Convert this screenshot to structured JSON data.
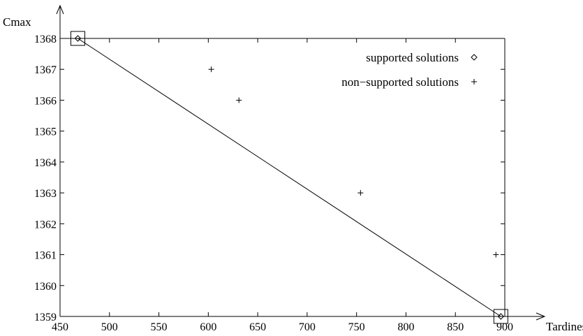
{
  "chart_data": {
    "type": "scatter",
    "xlabel": "Tardiness",
    "ylabel": "Cmax",
    "xlim": [
      450,
      900
    ],
    "ylim": [
      1359,
      1368
    ],
    "xticks": [
      450,
      500,
      550,
      600,
      650,
      700,
      750,
      800,
      850,
      900
    ],
    "yticks": [
      1359,
      1360,
      1361,
      1362,
      1363,
      1364,
      1365,
      1366,
      1367,
      1368
    ],
    "grid": false,
    "legend_position": "top-right",
    "series": [
      {
        "name": "supported solutions",
        "marker": "diamond",
        "points": [
          {
            "x": 468,
            "y": 1368
          },
          {
            "x": 896,
            "y": 1359
          }
        ]
      },
      {
        "name": "non−supported solutions",
        "marker": "plus",
        "points": [
          {
            "x": 603,
            "y": 1367
          },
          {
            "x": 631,
            "y": 1366
          },
          {
            "x": 754,
            "y": 1363
          },
          {
            "x": 891,
            "y": 1361
          }
        ]
      }
    ],
    "segments": [
      {
        "from": {
          "x": 468,
          "y": 1368
        },
        "to": {
          "x": 896,
          "y": 1359
        }
      }
    ],
    "highlighted_points": [
      {
        "x": 468,
        "y": 1368
      },
      {
        "x": 896,
        "y": 1359
      }
    ]
  }
}
